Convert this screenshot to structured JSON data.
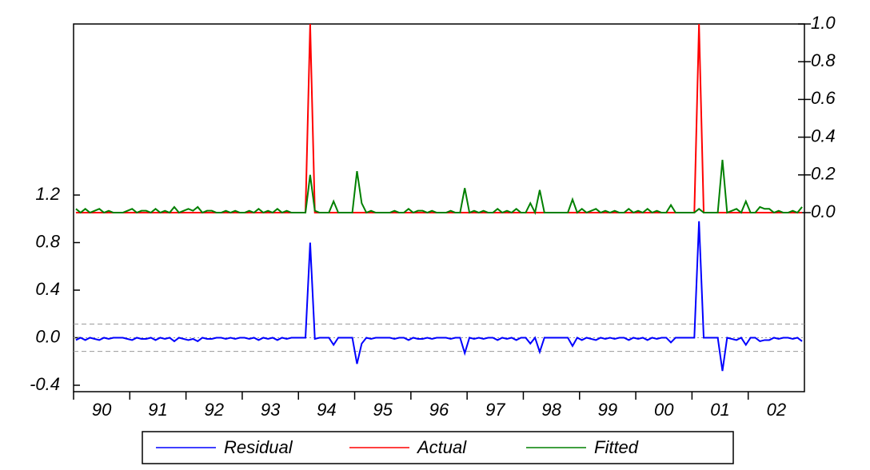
{
  "chart_data": {
    "type": "line",
    "categories": [
      null,
      null,
      null,
      null,
      null,
      null,
      "90",
      null,
      null,
      null,
      null,
      null,
      null,
      null,
      null,
      null,
      null,
      null,
      "91",
      null,
      null,
      null,
      null,
      null,
      null,
      null,
      null,
      null,
      null,
      null,
      "92",
      null,
      null,
      null,
      null,
      null,
      null,
      null,
      null,
      null,
      null,
      null,
      "93",
      null,
      null,
      null,
      null,
      null,
      null,
      null,
      null,
      null,
      null,
      null,
      "94",
      null,
      null,
      null,
      null,
      null,
      null,
      null,
      null,
      null,
      null,
      null,
      "95",
      null,
      null,
      null,
      null,
      null,
      null,
      null,
      null,
      null,
      null,
      null,
      "96",
      null,
      null,
      null,
      null,
      null,
      null,
      null,
      null,
      null,
      null,
      null,
      "97",
      null,
      null,
      null,
      null,
      null,
      null,
      null,
      null,
      null,
      null,
      null,
      "98",
      null,
      null,
      null,
      null,
      null,
      null,
      null,
      null,
      null,
      null,
      null,
      "99",
      null,
      null,
      null,
      null,
      null,
      null,
      null,
      null,
      null,
      null,
      null,
      "00",
      null,
      null,
      null,
      null,
      null,
      null,
      null,
      null,
      null,
      null,
      null,
      "01",
      null,
      null,
      null,
      null,
      null,
      null,
      null,
      null,
      null,
      null,
      null,
      "02",
      null,
      null,
      null,
      null,
      null
    ],
    "series": [
      {
        "name": "Residual",
        "color": "#0000ff",
        "axis": "y",
        "values": [
          -0.02,
          0,
          -0.02,
          0,
          -0.01,
          -0.02,
          0,
          -0.01,
          0,
          0,
          0,
          -0.01,
          -0.02,
          0,
          -0.01,
          -0.01,
          0,
          -0.02,
          0,
          -0.01,
          0,
          -0.03,
          0,
          -0.01,
          -0.02,
          -0.01,
          -0.03,
          0,
          -0.01,
          -0.01,
          0,
          0,
          -0.01,
          0,
          -0.01,
          0,
          0,
          -0.01,
          0,
          -0.02,
          0,
          -0.01,
          0,
          -0.02,
          0,
          -0.01,
          0,
          0,
          0,
          0,
          0.8,
          -0.01,
          0,
          0,
          0,
          -0.06,
          0,
          0,
          0,
          0,
          -0.22,
          -0.05,
          0,
          -0.01,
          0,
          0,
          0,
          0,
          -0.01,
          0,
          0,
          -0.02,
          0,
          -0.01,
          -0.01,
          0,
          -0.01,
          0,
          0,
          0,
          -0.01,
          0,
          0,
          -0.13,
          0,
          -0.01,
          0,
          -0.01,
          0,
          0,
          -0.02,
          0,
          -0.01,
          0,
          -0.02,
          0,
          0,
          -0.05,
          0,
          -0.12,
          0,
          0,
          0,
          0,
          0,
          0,
          -0.07,
          0,
          -0.02,
          0,
          -0.01,
          -0.02,
          0,
          -0.01,
          0,
          -0.01,
          0,
          0,
          -0.02,
          0,
          -0.01,
          0,
          -0.02,
          0,
          -0.01,
          0,
          0,
          -0.04,
          0,
          0,
          0,
          0,
          0,
          0.98,
          0,
          0,
          0,
          0,
          -0.28,
          0,
          -0.01,
          -0.02,
          0,
          -0.06,
          0,
          0,
          -0.03,
          -0.02,
          -0.02,
          0,
          -0.01,
          0,
          0,
          -0.01,
          0,
          -0.03
        ]
      },
      {
        "name": "Actual",
        "color": "#ff0000",
        "axis": "y2",
        "values": [
          0,
          0,
          0,
          0,
          0,
          0,
          0,
          0,
          0,
          0,
          0,
          0,
          0,
          0,
          0,
          0,
          0,
          0,
          0,
          0,
          0,
          0,
          0,
          0,
          0,
          0,
          0,
          0,
          0,
          0,
          0,
          0,
          0,
          0,
          0,
          0,
          0,
          0,
          0,
          0,
          0,
          0,
          0,
          0,
          0,
          0,
          0,
          0,
          0,
          0,
          1,
          0,
          0,
          0,
          0,
          0,
          0,
          0,
          0,
          0,
          0,
          0,
          0,
          0,
          0,
          0,
          0,
          0,
          0,
          0,
          0,
          0,
          0,
          0,
          0,
          0,
          0,
          0,
          0,
          0,
          0,
          0,
          0,
          0,
          0,
          0,
          0,
          0,
          0,
          0,
          0,
          0,
          0,
          0,
          0,
          0,
          0,
          0,
          0,
          0,
          0,
          0,
          0,
          0,
          0,
          0,
          0,
          0,
          0,
          0,
          0,
          0,
          0,
          0,
          0,
          0,
          0,
          0,
          0,
          0,
          0,
          0,
          0,
          0,
          0,
          0,
          0,
          0,
          0,
          0,
          0,
          0,
          0,
          1,
          0,
          0,
          0,
          0,
          0,
          0,
          0,
          0,
          0,
          0,
          0,
          0,
          0,
          0,
          0,
          0,
          0,
          0,
          0,
          0,
          0,
          0
        ]
      },
      {
        "name": "Fitted",
        "color": "#008000",
        "axis": "y2",
        "values": [
          0.02,
          0,
          0.02,
          0,
          0.01,
          0.02,
          0,
          0.01,
          0,
          0,
          0,
          0.01,
          0.02,
          0,
          0.01,
          0.01,
          0,
          0.02,
          0,
          0.01,
          0,
          0.03,
          0,
          0.01,
          0.02,
          0.01,
          0.03,
          0,
          0.01,
          0.01,
          0,
          0,
          0.01,
          0,
          0.01,
          0,
          0,
          0.01,
          0,
          0.02,
          0,
          0.01,
          0,
          0.02,
          0,
          0.01,
          0,
          0,
          0,
          0,
          0.2,
          0.01,
          0,
          0,
          0,
          0.06,
          0,
          0,
          0,
          0,
          0.22,
          0.05,
          0,
          0.01,
          0,
          0,
          0,
          0,
          0.01,
          0,
          0,
          0.02,
          0,
          0.01,
          0.01,
          0,
          0.01,
          0,
          0,
          0,
          0.01,
          0,
          0,
          0.13,
          0,
          0.01,
          0,
          0.01,
          0,
          0,
          0.02,
          0,
          0.01,
          0,
          0.02,
          0,
          0,
          0.05,
          0,
          0.12,
          0,
          0,
          0,
          0,
          0,
          0,
          0.07,
          0,
          0.02,
          0,
          0.01,
          0.02,
          0,
          0.01,
          0,
          0.01,
          0,
          0,
          0.02,
          0,
          0.01,
          0,
          0.02,
          0,
          0.01,
          0,
          0,
          0.04,
          0,
          0,
          0,
          0,
          0,
          0.02,
          0,
          0,
          0,
          0,
          0.28,
          0,
          0.01,
          0.02,
          0,
          0.06,
          0,
          0,
          0.03,
          0.02,
          0.02,
          0,
          0.01,
          0,
          0,
          0.01,
          0,
          0.03
        ]
      }
    ],
    "ylim": [
      -0.454,
      2.639
    ],
    "yticks": [
      -0.4,
      {
        "value": 0,
        "label": "0.0"
      },
      0.4,
      0.8,
      1.2
    ],
    "y2lim": [
      -0.949,
      1.0
    ],
    "y2ticks": [
      {
        "value": 0,
        "label": "0.0"
      },
      0.2,
      0.4,
      0.6,
      0.8,
      {
        "value": 1,
        "label": "1.0"
      }
    ],
    "error_bands": [
      -0.115,
      0.115
    ]
  }
}
